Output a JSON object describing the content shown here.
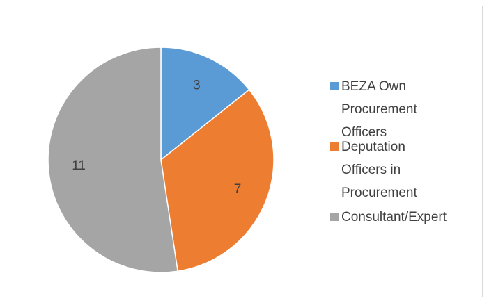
{
  "chart_data": {
    "type": "pie",
    "categories": [
      "BEZA Own Procurement Officers",
      "Deputation Officers in Procurement",
      "Consultant/Expert"
    ],
    "values": [
      3,
      7,
      11
    ],
    "colors": [
      "#5b9bd5",
      "#ed7d31",
      "#a5a5a5"
    ],
    "legend": "right"
  }
}
